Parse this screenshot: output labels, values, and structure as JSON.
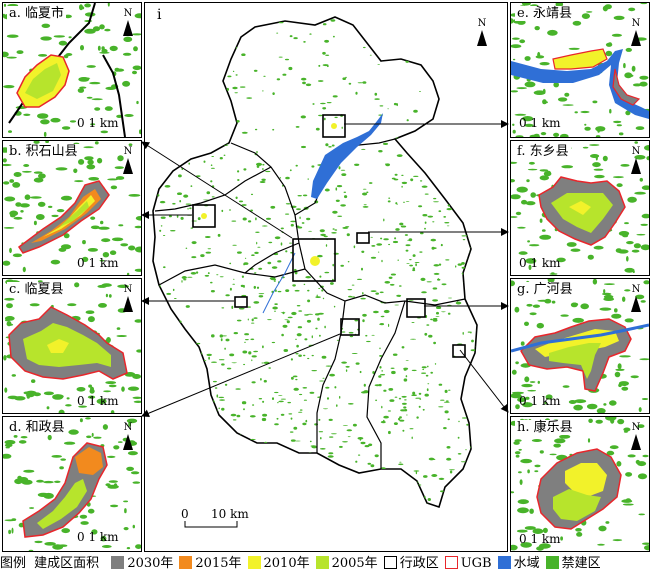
{
  "panels": {
    "a": {
      "label": "a. 临夏市",
      "scale": "0  1 km",
      "north": "N"
    },
    "b": {
      "label": "b. 积石山县",
      "scale": "0  1 km",
      "north": "N"
    },
    "c": {
      "label": "c. 临夏县",
      "scale": "0  1 km",
      "north": "N"
    },
    "d": {
      "label": "d. 和政县",
      "scale": "0  1 km",
      "north": "N"
    },
    "e": {
      "label": "e. 永靖县",
      "scale": "0  1 km",
      "north": "N"
    },
    "f": {
      "label": "f. 东乡县",
      "scale": "0  1 km",
      "north": "N"
    },
    "g": {
      "label": "g. 广河县",
      "scale": "0  1 km",
      "north": "N"
    },
    "h": {
      "label": "h. 康乐县",
      "scale": "0  1 km",
      "north": "N"
    }
  },
  "main_map": {
    "label": "i",
    "north": "N",
    "scale_left": "0",
    "scale_right": "10 km"
  },
  "legend": {
    "title": "图例",
    "subtitle": "建成区面积",
    "items": [
      {
        "label": "2030年",
        "color": "#7f7f7f",
        "kind": "fill"
      },
      {
        "label": "2015年",
        "color": "#f28a1e",
        "kind": "fill"
      },
      {
        "label": "2010年",
        "color": "#f2f22a",
        "kind": "fill"
      },
      {
        "label": "2005年",
        "color": "#b7e42c",
        "kind": "fill"
      },
      {
        "label": "行政区",
        "color": "#000000",
        "kind": "outline"
      },
      {
        "label": "UGB",
        "color": "#e8262b",
        "kind": "outline"
      },
      {
        "label": "水域",
        "color": "#2f6fd6",
        "kind": "fill"
      },
      {
        "label": "禁建区",
        "color": "#48b32a",
        "kind": "fill"
      }
    ]
  },
  "colors": {
    "forbidden": "#48b32a",
    "water": "#2f6fd6",
    "y2030": "#7f7f7f",
    "y2015": "#f28a1e",
    "y2010": "#f2f22a",
    "y2005": "#b7e42c",
    "ugb": "#e8262b"
  }
}
